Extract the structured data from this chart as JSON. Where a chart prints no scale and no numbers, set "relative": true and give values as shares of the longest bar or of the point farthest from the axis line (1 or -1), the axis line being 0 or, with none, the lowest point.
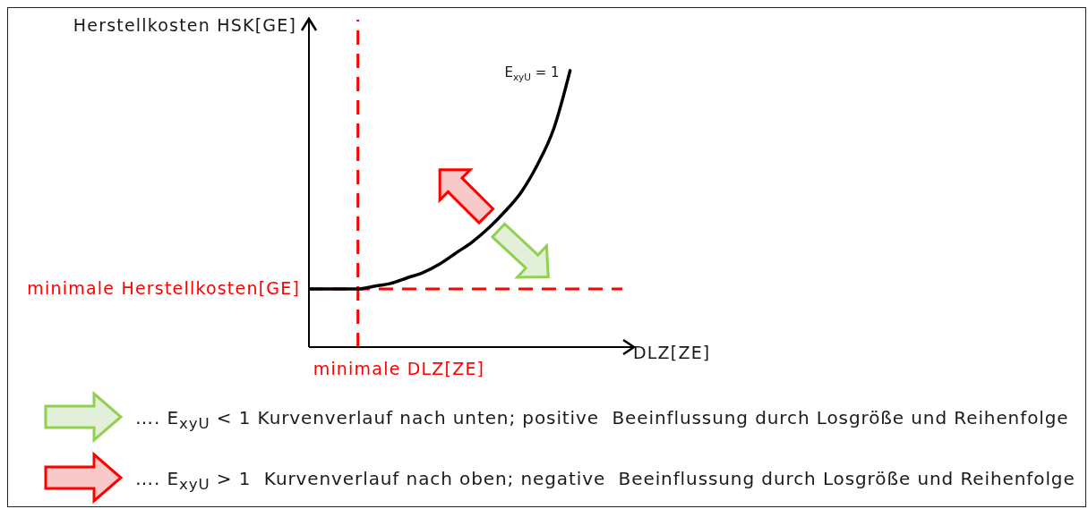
{
  "chart_data": {
    "type": "line",
    "xlabel": "DLZ[ZE]",
    "ylabel": "Herstellkosten HSK[GE]",
    "categories": [
      null,
      null,
      null,
      null,
      null,
      null,
      null,
      null,
      null,
      null,
      null,
      null,
      null,
      null,
      null,
      null,
      null
    ],
    "values": [
      0.21,
      0.21,
      0.21,
      0.21,
      0.22,
      0.23,
      0.25,
      0.27,
      0.3,
      0.34,
      0.38,
      0.43,
      0.49,
      0.56,
      0.66,
      0.79,
      1
    ],
    "color": "#000000",
    "relative": true,
    "line_style": "solid",
    "ref_lines": [
      {
        "axis": "y",
        "value": 0.21,
        "label": "minimale Herstellkosten[GE]",
        "color": "#ff0000",
        "line_style": "dashed"
      }
    ],
    "annotations": [
      "E$_{xyU}$ = 1",
      "minimale DLZ[ZE]",
      "…. E$_{xyU}$ < 1 Kurvenverlauf nach unten; positive  Beeinflussung durch Losgröße und Reihenfolge",
      "…. E$_{xyU}$ > 1  Kurvenverlauf nach oben; negative  Beeinflussung durch Losgröße und Reihenfolge"
    ]
  }
}
